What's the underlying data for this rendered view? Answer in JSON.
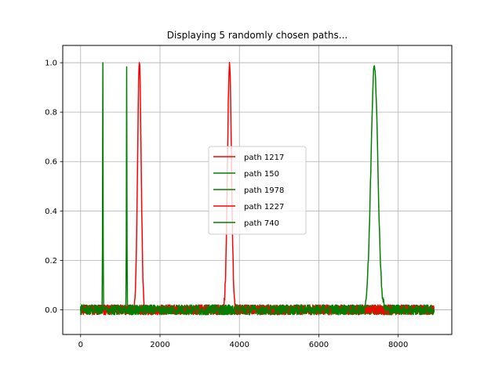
{
  "chart_data": {
    "type": "line",
    "title": "Displaying 5 randomly chosen paths...",
    "xlabel": "",
    "ylabel": "",
    "xlim": [
      -450,
      9350
    ],
    "ylim": [
      -0.1,
      1.07
    ],
    "x_ticks": [
      0,
      2000,
      4000,
      6000,
      8000
    ],
    "y_ticks": [
      0.0,
      0.2,
      0.4,
      0.6,
      0.8,
      1.0
    ],
    "x_tick_labels": [
      "0",
      "2000",
      "4000",
      "6000",
      "8000"
    ],
    "y_tick_labels": [
      "0.0",
      "0.2",
      "0.4",
      "0.6",
      "0.8",
      "1.0"
    ],
    "grid": true,
    "legend_position": "center",
    "x_range": [
      0,
      8900
    ],
    "noise_amplitude": 0.02,
    "series": [
      {
        "name": "path 1217",
        "color": "#ff0000",
        "peaks": [
          {
            "x": 1480,
            "width": 45,
            "height": 1.0
          }
        ]
      },
      {
        "name": "path 150",
        "color": "#008000",
        "peaks": [
          {
            "x": 560,
            "width": 6,
            "height": 1.0
          }
        ]
      },
      {
        "name": "path 1978",
        "color": "#008000",
        "peaks": [
          {
            "x": 1160,
            "width": 6,
            "height": 1.0
          }
        ]
      },
      {
        "name": "path 1227",
        "color": "#ff0000",
        "peaks": [
          {
            "x": 3750,
            "width": 50,
            "height": 1.0
          }
        ]
      },
      {
        "name": "path 740",
        "color": "#008000",
        "peaks": [
          {
            "x": 7400,
            "width": 85,
            "height": 1.0
          }
        ]
      }
    ]
  }
}
